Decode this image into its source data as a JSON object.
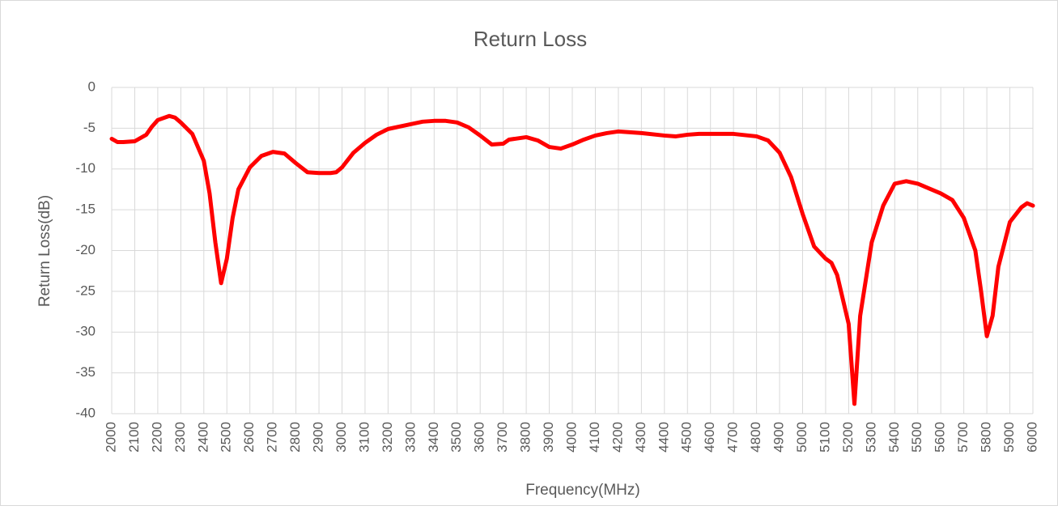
{
  "chart_data": {
    "type": "line",
    "title": "Return Loss",
    "xlabel": "Frequency(MHz)",
    "ylabel": "Return Loss(dB)",
    "grid": true,
    "xlim": [
      2000,
      6000
    ],
    "ylim": [
      -40,
      0
    ],
    "xticks": [
      2000,
      2100,
      2200,
      2300,
      2400,
      2500,
      2600,
      2700,
      2800,
      2900,
      3000,
      3100,
      3200,
      3300,
      3400,
      3500,
      3600,
      3700,
      3800,
      3900,
      4000,
      4100,
      4200,
      4300,
      4400,
      4500,
      4600,
      4700,
      4800,
      4900,
      5000,
      5100,
      5200,
      5300,
      5400,
      5500,
      5600,
      5700,
      5800,
      5900,
      6000
    ],
    "yticks": [
      0,
      -5,
      -10,
      -15,
      -20,
      -25,
      -30,
      -35,
      -40
    ],
    "x": [
      2000,
      2025,
      2050,
      2100,
      2150,
      2175,
      2200,
      2250,
      2275,
      2300,
      2350,
      2400,
      2425,
      2450,
      2475,
      2500,
      2525,
      2550,
      2600,
      2650,
      2700,
      2750,
      2800,
      2850,
      2900,
      2950,
      2975,
      3000,
      3050,
      3100,
      3150,
      3200,
      3300,
      3350,
      3400,
      3450,
      3500,
      3550,
      3600,
      3650,
      3700,
      3725,
      3800,
      3850,
      3900,
      3950,
      4000,
      4050,
      4100,
      4150,
      4200,
      4250,
      4300,
      4400,
      4450,
      4500,
      4550,
      4600,
      4700,
      4800,
      4850,
      4900,
      4950,
      5000,
      5050,
      5100,
      5125,
      5150,
      5200,
      5225,
      5250,
      5300,
      5350,
      5400,
      5450,
      5500,
      5550,
      5600,
      5650,
      5700,
      5750,
      5775,
      5800,
      5825,
      5850,
      5900,
      5950,
      5975,
      6000
    ],
    "series": [
      {
        "name": "Return Loss",
        "color": "#ff0000",
        "values": [
          -6.3,
          -6.7,
          -6.7,
          -6.6,
          -5.8,
          -4.8,
          -4.0,
          -3.5,
          -3.7,
          -4.3,
          -5.7,
          -9.0,
          -13,
          -19,
          -24,
          -21,
          -16,
          -12.5,
          -9.8,
          -8.4,
          -7.9,
          -8.1,
          -9.3,
          -10.4,
          -10.5,
          -10.5,
          -10.4,
          -9.8,
          -8,
          -6.8,
          -5.8,
          -5.1,
          -4.5,
          -4.2,
          -4.1,
          -4.1,
          -4.3,
          -4.9,
          -5.9,
          -7.0,
          -6.9,
          -6.4,
          -6.1,
          -6.5,
          -7.3,
          -7.5,
          -7.0,
          -6.4,
          -5.9,
          -5.6,
          -5.4,
          -5.5,
          -5.6,
          -5.9,
          -6.0,
          -5.8,
          -5.7,
          -5.7,
          -5.7,
          -6.0,
          -6.5,
          -8,
          -11,
          -15.5,
          -19.5,
          -21,
          -21.5,
          -23,
          -29,
          -38.8,
          -28,
          -19,
          -14.5,
          -11.8,
          -11.5,
          -11.8,
          -12.4,
          -13,
          -13.8,
          -16,
          -20,
          -25,
          -30.5,
          -28,
          -22,
          -16.5,
          -14.7,
          -14.2,
          -14.5
        ]
      }
    ]
  }
}
